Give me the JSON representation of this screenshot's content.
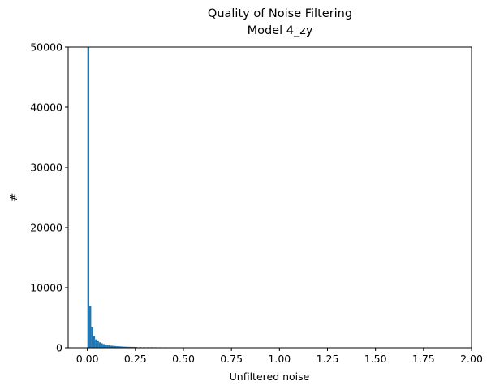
{
  "chart_data": {
    "type": "bar",
    "title": [
      "Quality of Noise Filtering",
      "Model 4_zy"
    ],
    "xlabel": "Unfiltered noise",
    "ylabel": "#",
    "xlim": [
      -0.1,
      2.0
    ],
    "ylim": [
      0,
      50000
    ],
    "xticks": [
      0.0,
      0.25,
      0.5,
      0.75,
      1.0,
      1.25,
      1.5,
      1.75,
      2.0
    ],
    "xtick_labels": [
      "0.00",
      "0.25",
      "0.50",
      "0.75",
      "1.00",
      "1.25",
      "1.50",
      "1.75",
      "2.00"
    ],
    "yticks": [
      0,
      10000,
      20000,
      30000,
      40000,
      50000
    ],
    "ytick_labels": [
      "0",
      "10000",
      "20000",
      "30000",
      "40000",
      "50000"
    ],
    "bin_width": 0.01,
    "bar_color": "#1f77b4",
    "bins_start": [
      0.0,
      0.01,
      0.02,
      0.03,
      0.04,
      0.05,
      0.06,
      0.07,
      0.08,
      0.09,
      0.1,
      0.11,
      0.12,
      0.13,
      0.14,
      0.15,
      0.16,
      0.17,
      0.18,
      0.19,
      0.2,
      0.21,
      0.22,
      0.23,
      0.24,
      0.25,
      0.27,
      0.29,
      0.31,
      0.33,
      0.35,
      0.37,
      0.4,
      0.43,
      0.46,
      0.49,
      0.52
    ],
    "counts": [
      50000,
      7000,
      3400,
      2000,
      1400,
      1100,
      900,
      750,
      620,
      520,
      450,
      400,
      350,
      320,
      290,
      260,
      240,
      220,
      200,
      180,
      170,
      160,
      150,
      140,
      130,
      120,
      110,
      100,
      95,
      90,
      85,
      80,
      75,
      70,
      65,
      70,
      40
    ]
  }
}
